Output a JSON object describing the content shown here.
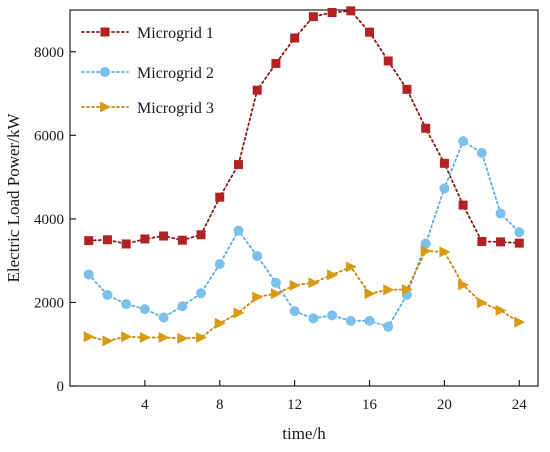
{
  "chart_data": {
    "type": "line",
    "xlabel": "time/h",
    "ylabel": "Electric Load Power/kW",
    "xlim": [
      0,
      25
    ],
    "ylim": [
      0,
      9000
    ],
    "xticks": [
      4,
      8,
      12,
      16,
      20,
      24
    ],
    "yticks": [
      0,
      2000,
      4000,
      6000,
      8000
    ],
    "legend_position": "top-left",
    "grid": false,
    "x": [
      1,
      2,
      3,
      4,
      5,
      6,
      7,
      8,
      9,
      10,
      11,
      12,
      13,
      14,
      15,
      16,
      17,
      18,
      19,
      20,
      21,
      22,
      23,
      24
    ],
    "series": [
      {
        "name": "Microgrid 1",
        "marker": "square",
        "line_color": "#8B1A1A",
        "marker_color": "#B22222",
        "values": [
          3480,
          3500,
          3400,
          3520,
          3590,
          3490,
          3620,
          4520,
          5300,
          7080,
          7720,
          8330,
          8840,
          8940,
          8980,
          8470,
          7780,
          7100,
          6170,
          5330,
          4330,
          3460,
          3450,
          3420
        ]
      },
      {
        "name": "Microgrid 2",
        "marker": "circle",
        "line_color": "#5BAEE6",
        "marker_color": "#7CC0EE",
        "values": [
          2670,
          2180,
          1960,
          1840,
          1640,
          1910,
          2220,
          2920,
          3720,
          3110,
          2470,
          1790,
          1620,
          1690,
          1560,
          1560,
          1420,
          2180,
          3410,
          4730,
          5860,
          5580,
          4130,
          3680
        ]
      },
      {
        "name": "Microgrid 3",
        "marker": "triangle-right",
        "line_color": "#C8880C",
        "marker_color": "#D89A10",
        "values": [
          1180,
          1080,
          1180,
          1160,
          1160,
          1140,
          1160,
          1500,
          1750,
          2130,
          2210,
          2410,
          2470,
          2660,
          2850,
          2210,
          2300,
          2310,
          3230,
          3210,
          2420,
          1990,
          1810,
          1530
        ]
      }
    ]
  }
}
